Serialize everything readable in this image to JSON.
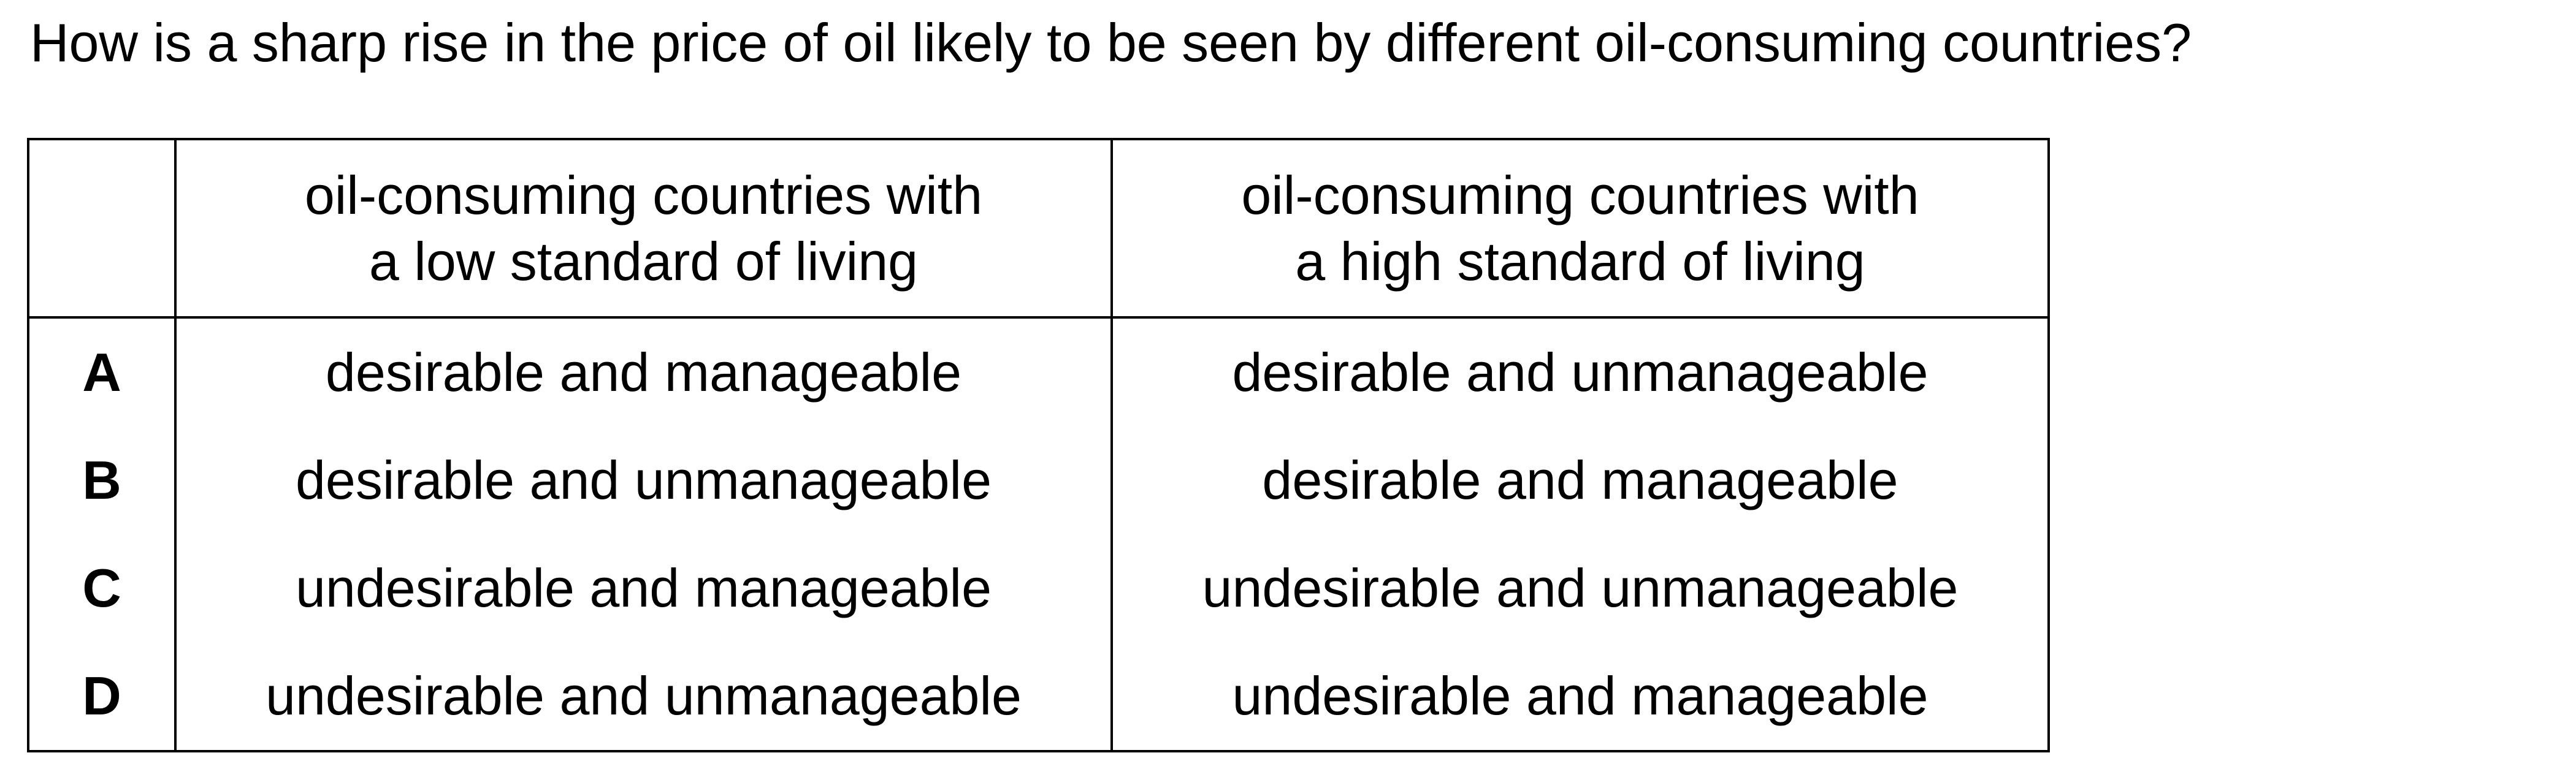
{
  "question": "How is a sharp rise in the price of oil likely to be seen by different oil-consuming countries?",
  "table": {
    "headers": {
      "low": [
        "oil-consuming countries with",
        "a low standard of living"
      ],
      "high": [
        "oil-consuming countries with",
        "a high standard of living"
      ]
    },
    "rows": [
      {
        "letter": "A",
        "low": "desirable and manageable",
        "high": "desirable and unmanageable"
      },
      {
        "letter": "B",
        "low": "desirable and unmanageable",
        "high": "desirable and manageable"
      },
      {
        "letter": "C",
        "low": "undesirable and manageable",
        "high": "undesirable and unmanageable"
      },
      {
        "letter": "D",
        "low": "undesirable and unmanageable",
        "high": "undesirable and manageable"
      }
    ]
  }
}
